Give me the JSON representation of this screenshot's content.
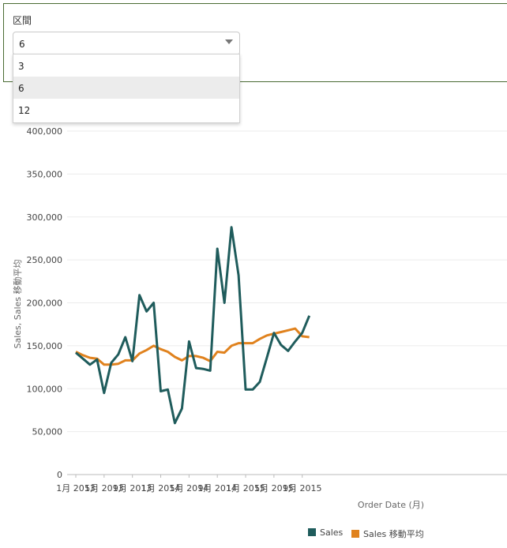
{
  "filter": {
    "label": "区間",
    "selected": "6",
    "options": [
      "3",
      "6",
      "12"
    ]
  },
  "legend": {
    "sales_label": "Sales",
    "moving_avg_label": "Sales 移動平均"
  },
  "colors": {
    "sales": "#1f5c5c",
    "moving_avg": "#e0821e",
    "panel_border": "#4a6b34"
  },
  "chart_data": {
    "type": "line",
    "title": "",
    "xlabel": "Order Date (月)",
    "ylabel": "Sales, Sales 移動平均",
    "ylim": [
      0,
      400000
    ],
    "yticks": [
      "0",
      "50,000",
      "100,000",
      "150,000",
      "200,000",
      "250,000",
      "300,000",
      "350,000",
      "400,000"
    ],
    "x_tick_labels": [
      "1月 2013",
      "5月 2013",
      "9月 2013",
      "1月 2014",
      "5月 2014",
      "9月 2014",
      "1月 2015",
      "5月 2015",
      "9月 2015"
    ],
    "x_tick_index": [
      0,
      4,
      8,
      12,
      16,
      20,
      24,
      28,
      32
    ],
    "series": [
      {
        "name": "Sales",
        "values": [
          142000,
          135000,
          128000,
          134000,
          95000,
          130000,
          140000,
          160000,
          132000,
          209000,
          190000,
          200000,
          97000,
          99000,
          60000,
          77000,
          155000,
          124000,
          123000,
          121000,
          263000,
          200000,
          288000,
          232000,
          99000,
          99000,
          108000,
          136000,
          165000,
          151000,
          144000,
          155000,
          165000,
          185000
        ]
      },
      {
        "name": "Sales 移動平均",
        "values": [
          143000,
          139000,
          136000,
          135000,
          128000,
          128000,
          129000,
          133000,
          133000,
          141000,
          145000,
          150000,
          146000,
          143000,
          137000,
          133000,
          138000,
          138000,
          136000,
          132000,
          143000,
          142000,
          150000,
          153000,
          153000,
          153000,
          158000,
          162000,
          164000,
          166000,
          168000,
          170000,
          161000,
          160000
        ]
      }
    ]
  }
}
